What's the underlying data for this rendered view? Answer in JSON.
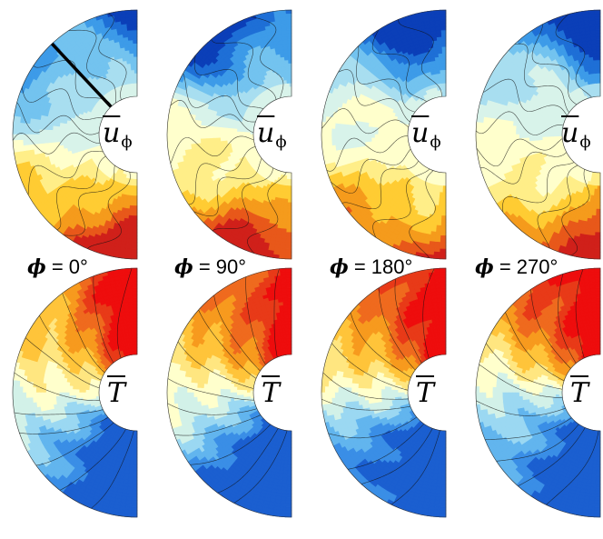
{
  "figure": {
    "columns": [
      {
        "phi_label": "= 0°",
        "phi_symbol": "ϕ",
        "has_section_line": true
      },
      {
        "phi_label": "= 90°",
        "phi_symbol": "ϕ",
        "has_section_line": false
      },
      {
        "phi_label": "= 180°",
        "phi_symbol": "ϕ",
        "has_section_line": false
      },
      {
        "phi_label": "= 270°",
        "phi_symbol": "ϕ",
        "has_section_line": false
      }
    ],
    "rows": [
      {
        "field": "velocity",
        "label_base": "u",
        "label_subscript": "ϕ",
        "colormap": "diverging"
      },
      {
        "field": "temperature",
        "label_base": "T",
        "label_subscript": "",
        "colormap": "warm-cool"
      }
    ]
  },
  "colors": {
    "velocity_scale": [
      "#0b3fb8",
      "#1e6fd6",
      "#3d9be8",
      "#73c3ef",
      "#a8def0",
      "#d8f3ea",
      "#ffffcc",
      "#ffee88",
      "#ffcc33",
      "#f59b1c",
      "#e8581a",
      "#d0201a"
    ],
    "temperature_scale": [
      "#1b5fd0",
      "#3a8ee6",
      "#62b5ee",
      "#9bd8f2",
      "#d2f1e8",
      "#ffffcc",
      "#ffe680",
      "#ffc43a",
      "#f79a1e",
      "#ef6a1e",
      "#e83a18",
      "#ee0d0d"
    ],
    "contour_line": "#111111"
  }
}
